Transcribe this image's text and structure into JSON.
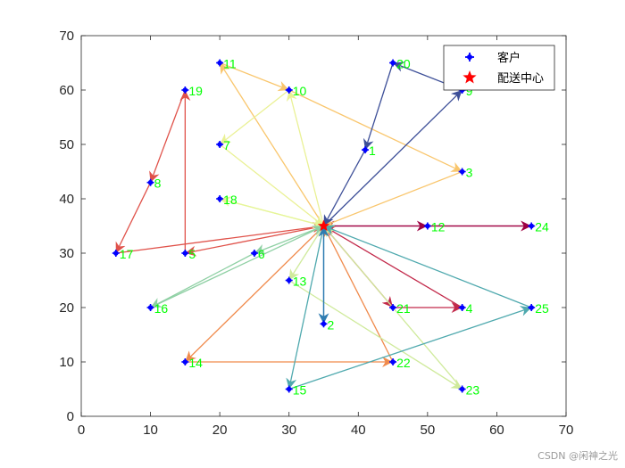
{
  "chart_data": {
    "type": "scatter",
    "xlim": [
      0,
      70
    ],
    "ylim": [
      0,
      70
    ],
    "xticks": [
      0,
      10,
      20,
      30,
      40,
      50,
      60,
      70
    ],
    "yticks": [
      0,
      10,
      20,
      30,
      40,
      50,
      60,
      70
    ],
    "grid": false,
    "legend_position": "top-right",
    "legend": [
      {
        "label": "客户",
        "marker": "plus-dot",
        "color": "#0000ff"
      },
      {
        "label": "配送中心",
        "marker": "star",
        "color": "#ff0000"
      }
    ],
    "depot": {
      "x": 35,
      "y": 35
    },
    "customers": [
      {
        "id": "1",
        "x": 41,
        "y": 49
      },
      {
        "id": "2",
        "x": 35,
        "y": 17
      },
      {
        "id": "3",
        "x": 55,
        "y": 45
      },
      {
        "id": "4",
        "x": 55,
        "y": 20
      },
      {
        "id": "5",
        "x": 15,
        "y": 30
      },
      {
        "id": "6",
        "x": 25,
        "y": 30
      },
      {
        "id": "7",
        "x": 20,
        "y": 50
      },
      {
        "id": "8",
        "x": 10,
        "y": 43
      },
      {
        "id": "9",
        "x": 55,
        "y": 60
      },
      {
        "id": "10",
        "x": 30,
        "y": 60
      },
      {
        "id": "11",
        "x": 20,
        "y": 65
      },
      {
        "id": "12",
        "x": 50,
        "y": 35
      },
      {
        "id": "13",
        "x": 30,
        "y": 25
      },
      {
        "id": "14",
        "x": 15,
        "y": 10
      },
      {
        "id": "15",
        "x": 30,
        "y": 5
      },
      {
        "id": "16",
        "x": 10,
        "y": 20
      },
      {
        "id": "17",
        "x": 5,
        "y": 30
      },
      {
        "id": "18",
        "x": 20,
        "y": 40
      },
      {
        "id": "19",
        "x": 15,
        "y": 60
      },
      {
        "id": "20",
        "x": 45,
        "y": 65
      },
      {
        "id": "21",
        "x": 45,
        "y": 20
      },
      {
        "id": "22",
        "x": 45,
        "y": 10
      },
      {
        "id": "23",
        "x": 55,
        "y": 5
      },
      {
        "id": "24",
        "x": 65,
        "y": 35
      },
      {
        "id": "25",
        "x": 65,
        "y": 20
      }
    ],
    "routes": [
      {
        "color": "#9e0142",
        "stops": [
          "12",
          "24"
        ]
      },
      {
        "color": "#c2294a",
        "stops": [
          "21",
          "4"
        ]
      },
      {
        "color": "#e0524a",
        "stops": [
          "5",
          "19",
          "8",
          "17"
        ]
      },
      {
        "color": "#f08a4b",
        "stops": [
          "14",
          "22"
        ]
      },
      {
        "color": "#f9c66d",
        "stops": [
          "11",
          "10",
          "3"
        ]
      },
      {
        "color": "#eaf195",
        "stops": [
          "10",
          "7"
        ]
      },
      {
        "color": "#e6f598",
        "stops": [
          "18"
        ]
      },
      {
        "color": "#cfea9b",
        "stops": [
          "13",
          "23"
        ]
      },
      {
        "color": "#8fd0a4",
        "stops": [
          "6",
          "16"
        ]
      },
      {
        "color": "#4fa9ae",
        "stops": [
          "15",
          "25"
        ]
      },
      {
        "color": "#2f7cb1",
        "stops": [
          "2"
        ]
      },
      {
        "color": "#3d4f98",
        "stops": [
          "9",
          "20",
          "1"
        ]
      }
    ]
  },
  "watermark": "CSDN @闲神之光"
}
